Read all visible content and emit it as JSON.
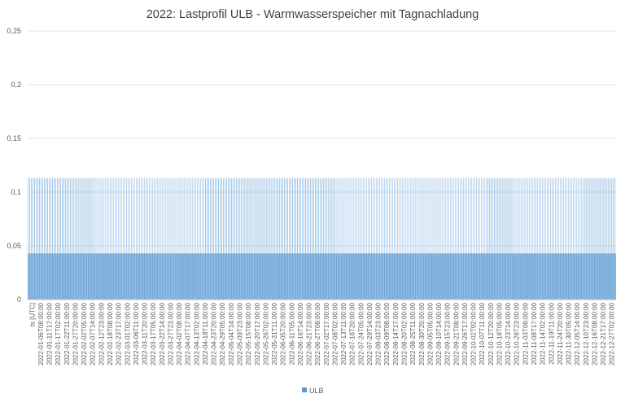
{
  "chart_data": {
    "type": "bar",
    "title": "2022: Lastprofil ULB - Warmwasserspeicher mit Tagnachladung",
    "xlabel": "",
    "ylabel": "",
    "ylim": [
      0,
      0.25
    ],
    "yticks": [
      "0",
      "0,05",
      "0,1",
      "0,15",
      "0,2",
      "0,25"
    ],
    "grid": true,
    "legend_position": "bottom",
    "x_first_label": "ts [UTC]",
    "categories": [
      "2022-01-06T08:00:00",
      "2022-01-11T17:00:00",
      "2022-01-17T02:00:00",
      "2022-01-22T11:00:00",
      "2022-01-27T20:00:00",
      "2022-02-02T05:00:00",
      "2022-02-07T14:00:00",
      "2022-02-12T23:00:00",
      "2022-02-18T08:00:00",
      "2022-02-23T17:00:00",
      "2022-03-01T02:00:00",
      "2022-03-06T11:00:00",
      "2022-03-11T20:00:00",
      "2022-03-17T05:00:00",
      "2022-03-22T14:00:00",
      "2022-03-27T23:00:00",
      "2022-04-02T08:00:00",
      "2022-04-07T17:00:00",
      "2022-04-13T02:00:00",
      "2022-04-18T11:00:00",
      "2022-04-23T20:00:00",
      "2022-04-29T05:00:00",
      "2022-05-04T14:00:00",
      "2022-05-09T23:00:00",
      "2022-05-15T08:00:00",
      "2022-05-20T17:00:00",
      "2022-05-26T02:00:00",
      "2022-05-31T11:00:00",
      "2022-06-05T20:00:00",
      "2022-06-11T05:00:00",
      "2022-06-16T14:00:00",
      "2022-06-21T23:00:00",
      "2022-06-27T08:00:00",
      "2022-07-02T17:00:00",
      "2022-07-08T02:00:00",
      "2022-07-13T11:00:00",
      "2022-07-18T20:00:00",
      "2022-07-24T05:00:00",
      "2022-07-29T14:00:00",
      "2022-08-03T23:00:00",
      "2022-08-09T08:00:00",
      "2022-08-14T17:00:00",
      "2022-08-20T02:00:00",
      "2022-08-25T11:00:00",
      "2022-08-30T20:00:00",
      "2022-09-05T05:00:00",
      "2022-09-10T14:00:00",
      "2022-09-15T23:00:00",
      "2022-09-21T08:00:00",
      "2022-09-26T17:00:00",
      "2022-10-02T02:00:00",
      "2022-10-07T11:00:00",
      "2022-10-12T20:00:00",
      "2022-10-18T05:00:00",
      "2022-10-23T14:00:00",
      "2022-10-28T23:00:00",
      "2022-11-03T08:00:00",
      "2022-11-08T17:00:00",
      "2022-11-14T02:00:00",
      "2022-11-19T11:00:00",
      "2022-11-24T20:00:00",
      "2022-11-30T05:00:00",
      "2022-12-05T14:00:00",
      "2022-12-10T23:00:00",
      "2022-12-16T08:00:00",
      "2022-12-21T17:00:00",
      "2022-12-27T02:00:00"
    ],
    "series": [
      {
        "name": "ULB",
        "color": "#5b9bd5",
        "pattern": {
          "base_value": 0.043,
          "peak_value": 0.113,
          "note_daily": "daily peak of about 0.113 over a constant base of about 0.043"
        }
      }
    ]
  }
}
